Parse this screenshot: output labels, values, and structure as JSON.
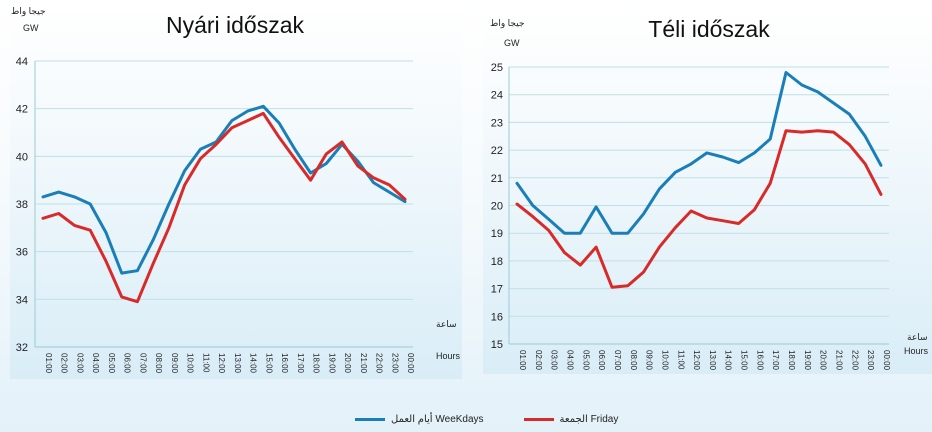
{
  "legend": {
    "weekdays": "أيام العمل WeeKdays",
    "friday": "الجمعة Friday"
  },
  "colors": {
    "weekdays": "#1a7fb8",
    "friday": "#d92a2a"
  },
  "chart_data": [
    {
      "type": "line",
      "title": "Nyári időszak",
      "ylabel_ar": "جيجا واط",
      "ylabel": "GW",
      "xlabel_ar": "ساعة",
      "xlabel": "Hours",
      "ylim": [
        32,
        44
      ],
      "yticks": [
        "32",
        "34",
        "36",
        "38",
        "40",
        "42",
        "44"
      ],
      "categories": [
        "01:00",
        "02:00",
        "03:00",
        "04:00",
        "05:00",
        "06:00",
        "07:00",
        "08:00",
        "09:00",
        "10:00",
        "11:00",
        "12:00",
        "13:00",
        "14:00",
        "15:00",
        "16:00",
        "17:00",
        "18:00",
        "19:00",
        "20:00",
        "21:00",
        "22:00",
        "23:00",
        "00:00"
      ],
      "series": [
        {
          "name": "WeeKdays",
          "values": [
            38.3,
            38.5,
            38.3,
            38.0,
            36.8,
            35.1,
            35.2,
            36.5,
            38.0,
            39.4,
            40.3,
            40.6,
            41.5,
            41.9,
            42.1,
            41.4,
            40.3,
            39.3,
            39.7,
            40.5,
            39.8,
            38.9,
            38.5,
            38.1
          ]
        },
        {
          "name": "Friday",
          "values": [
            37.4,
            37.6,
            37.1,
            36.9,
            35.6,
            34.1,
            33.9,
            35.5,
            37.0,
            38.8,
            39.9,
            40.5,
            41.2,
            41.5,
            41.8,
            40.8,
            39.9,
            39.0,
            40.1,
            40.6,
            39.6,
            39.1,
            38.8,
            38.2
          ]
        }
      ]
    },
    {
      "type": "line",
      "title": "Téli időszak",
      "ylabel_ar": "جيجا واط",
      "ylabel": "GW",
      "xlabel_ar": "ساعة",
      "xlabel": "Hours",
      "ylim": [
        15,
        25
      ],
      "yticks": [
        "15",
        "16",
        "17",
        "18",
        "19",
        "20",
        "21",
        "22",
        "23",
        "24",
        "25"
      ],
      "categories": [
        "01:00",
        "02:00",
        "03:00",
        "04:00",
        "05:00",
        "06:00",
        "07:00",
        "08:00",
        "09:00",
        "10:00",
        "11:00",
        "12:00",
        "13:00",
        "14:00",
        "15:00",
        "16:00",
        "17:00",
        "18:00",
        "19:00",
        "20:00",
        "21:00",
        "22:00",
        "23:00",
        "00:00"
      ],
      "series": [
        {
          "name": "WeeKdays",
          "values": [
            20.8,
            20.0,
            19.5,
            19.0,
            19.0,
            19.95,
            19.0,
            19.0,
            19.7,
            20.6,
            21.2,
            21.5,
            21.9,
            21.75,
            21.55,
            21.9,
            22.4,
            24.8,
            24.35,
            24.1,
            23.7,
            23.3,
            22.5,
            21.45
          ]
        },
        {
          "name": "Friday",
          "values": [
            20.05,
            19.6,
            19.1,
            18.3,
            17.85,
            18.5,
            17.05,
            17.1,
            17.6,
            18.5,
            19.2,
            19.8,
            19.55,
            19.45,
            19.35,
            19.85,
            20.8,
            22.7,
            22.65,
            22.7,
            22.65,
            22.2,
            21.5,
            20.4
          ]
        }
      ]
    }
  ]
}
